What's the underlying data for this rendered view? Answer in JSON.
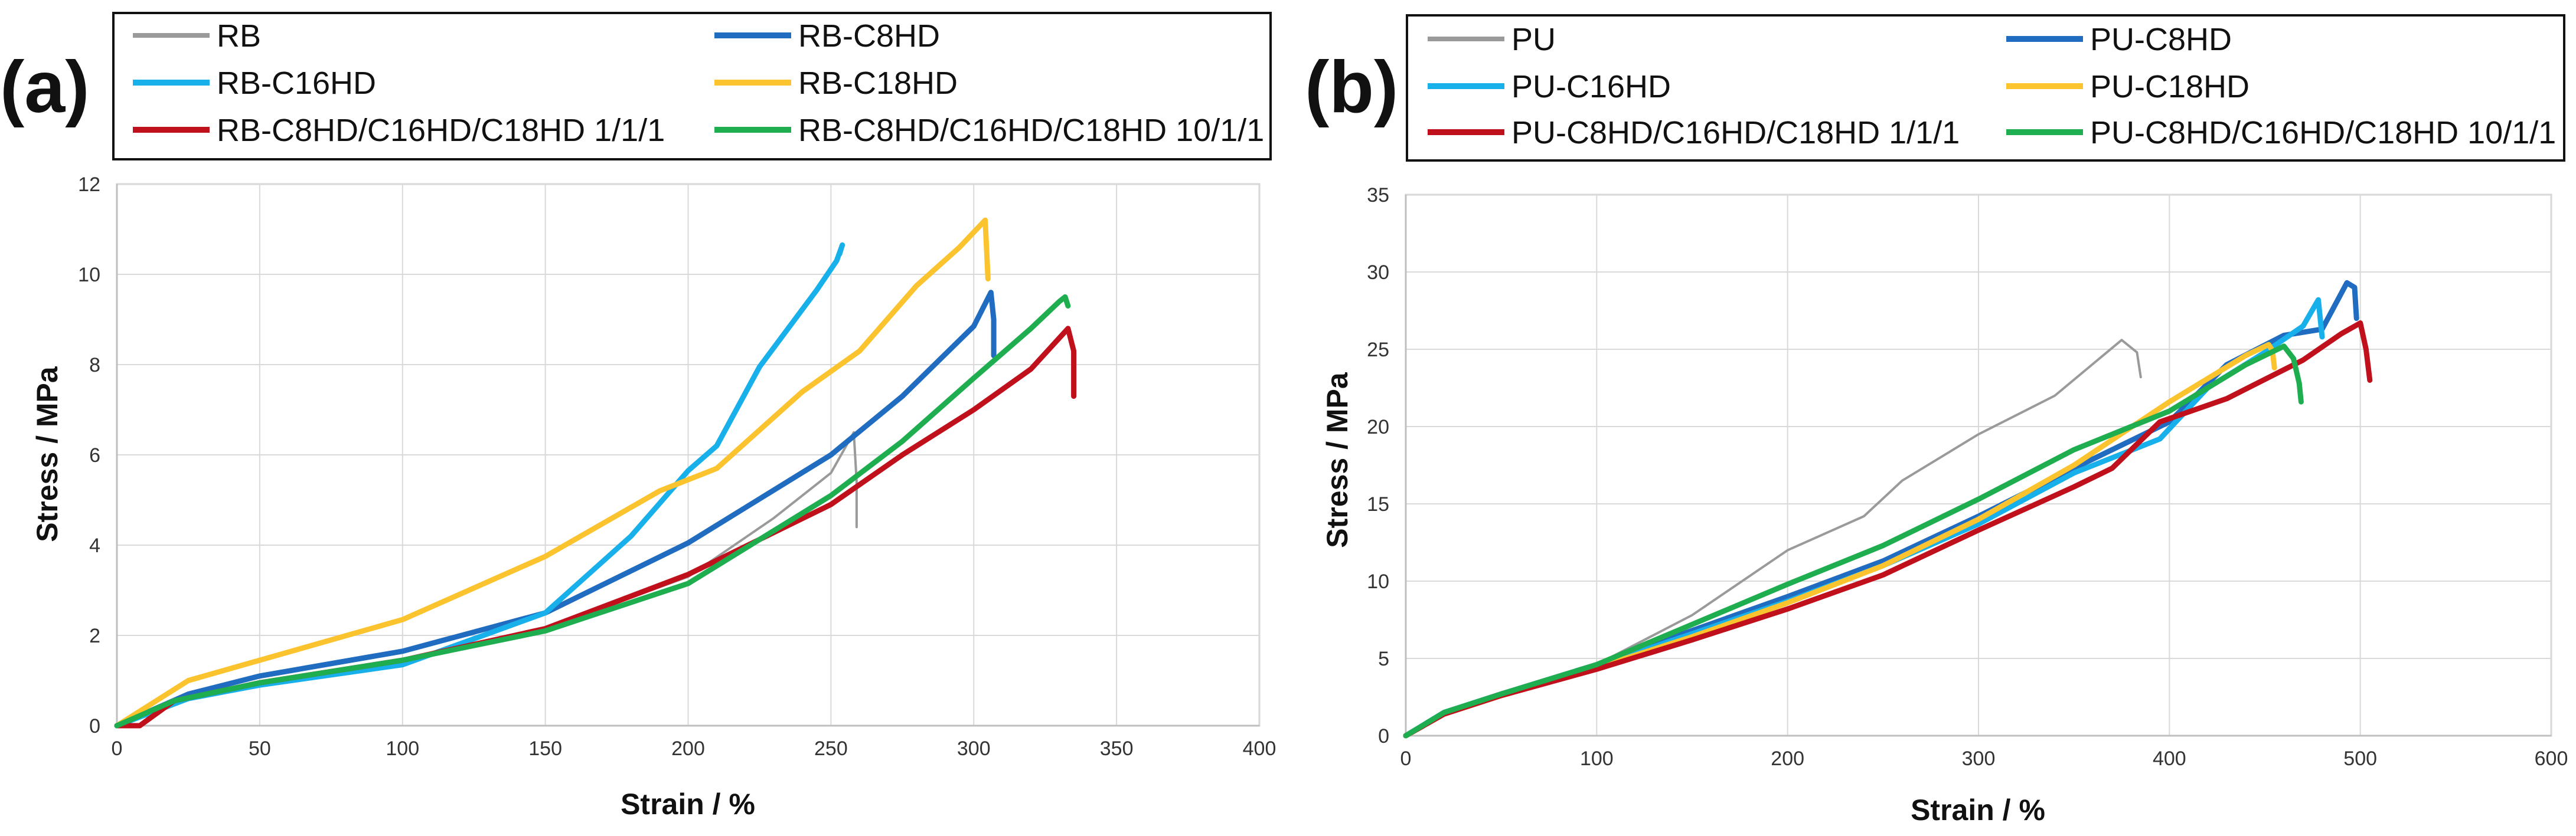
{
  "colors": {
    "gray": "#9a9a9a",
    "dark_blue": "#1f6cc0",
    "light_blue": "#17b0ea",
    "yellow": "#fbc42e",
    "red": "#c0101c",
    "green": "#1fae4f",
    "grid": "#d9d9d9"
  },
  "chart_data": [
    {
      "type": "line",
      "panel_label": "(a)",
      "xlabel": "Strain / %",
      "ylabel": "Stress / MPa",
      "xlim": [
        0,
        400
      ],
      "ylim": [
        0,
        12
      ],
      "xticks": [
        0,
        50,
        100,
        150,
        200,
        250,
        300,
        350,
        400
      ],
      "yticks": [
        0,
        2,
        4,
        6,
        8,
        10,
        12
      ],
      "grid": true,
      "legend_position": "top",
      "series": [
        {
          "name": "RB",
          "color": "gray",
          "line": "thin",
          "x": [
            0,
            25,
            50,
            100,
            150,
            200,
            230,
            250,
            258,
            259,
            259
          ],
          "y": [
            0,
            0.6,
            0.9,
            1.45,
            2.15,
            3.3,
            4.6,
            5.6,
            6.5,
            5.4,
            4.4
          ]
        },
        {
          "name": "RB-C8HD",
          "color": "dark_blue",
          "line": "thick",
          "x": [
            0,
            25,
            50,
            100,
            150,
            200,
            250,
            275,
            300,
            306,
            307,
            307
          ],
          "y": [
            0,
            0.7,
            1.1,
            1.65,
            2.5,
            4.05,
            6.0,
            7.3,
            8.85,
            9.6,
            9.0,
            8.2
          ]
        },
        {
          "name": "RB-C16HD",
          "color": "light_blue",
          "line": "thick",
          "x": [
            0,
            25,
            50,
            100,
            150,
            180,
            200,
            210,
            225,
            245,
            252,
            254,
            253
          ],
          "y": [
            0,
            0.6,
            0.9,
            1.35,
            2.5,
            4.2,
            5.65,
            6.2,
            7.95,
            9.65,
            10.3,
            10.65,
            10.45
          ]
        },
        {
          "name": "RB-C18HD",
          "color": "yellow",
          "line": "thick",
          "x": [
            0,
            25,
            50,
            100,
            150,
            190,
            210,
            240,
            260,
            280,
            295,
            304,
            305
          ],
          "y": [
            0,
            1.0,
            1.45,
            2.35,
            3.75,
            5.2,
            5.7,
            7.4,
            8.3,
            9.75,
            10.6,
            11.2,
            9.9
          ]
        },
        {
          "name": "RB-C8HD/C16HD/C18HD 1/1/1",
          "color": "red",
          "line": "thick",
          "x": [
            0,
            8,
            20,
            50,
            100,
            150,
            200,
            250,
            275,
            300,
            320,
            333,
            335,
            335
          ],
          "y": [
            0,
            0.0,
            0.55,
            0.95,
            1.45,
            2.15,
            3.35,
            4.9,
            6.0,
            7.0,
            7.9,
            8.8,
            8.3,
            7.3
          ]
        },
        {
          "name": "RB-C8HD/C16HD/C18HD 10/1/1",
          "color": "green",
          "line": "thick",
          "x": [
            0,
            20,
            50,
            100,
            150,
            200,
            250,
            275,
            300,
            320,
            330,
            332,
            333
          ],
          "y": [
            0,
            0.55,
            0.95,
            1.45,
            2.1,
            3.15,
            5.1,
            6.3,
            7.7,
            8.8,
            9.4,
            9.5,
            9.3
          ]
        }
      ]
    },
    {
      "type": "line",
      "panel_label": "(b)",
      "xlabel": "Strain / %",
      "ylabel": "Stress / MPa",
      "xlim": [
        0,
        600
      ],
      "ylim": [
        0,
        35
      ],
      "xticks": [
        0,
        100,
        200,
        300,
        400,
        500,
        600
      ],
      "yticks": [
        0,
        5,
        10,
        15,
        20,
        25,
        30,
        35
      ],
      "grid": true,
      "legend_position": "top",
      "series": [
        {
          "name": "PU",
          "color": "gray",
          "line": "thin",
          "x": [
            0,
            20,
            50,
            100,
            150,
            200,
            240,
            260,
            300,
            340,
            375,
            383,
            385
          ],
          "y": [
            0,
            1.6,
            2.8,
            4.6,
            7.8,
            12.0,
            14.2,
            16.5,
            19.5,
            22.0,
            25.6,
            24.8,
            23.2
          ]
        },
        {
          "name": "PU-C8HD",
          "color": "dark_blue",
          "line": "thick",
          "x": [
            0,
            20,
            50,
            100,
            150,
            200,
            250,
            300,
            350,
            400,
            430,
            460,
            480,
            493,
            497,
            498
          ],
          "y": [
            0,
            1.5,
            2.7,
            4.6,
            6.8,
            9.0,
            11.3,
            14.2,
            17.3,
            20.3,
            24.0,
            25.9,
            26.3,
            29.3,
            29.0,
            27.0
          ]
        },
        {
          "name": "PU-C16HD",
          "color": "light_blue",
          "line": "thick",
          "x": [
            0,
            20,
            50,
            100,
            150,
            200,
            250,
            300,
            350,
            395,
            420,
            450,
            470,
            478,
            480
          ],
          "y": [
            0,
            1.5,
            2.7,
            4.5,
            6.6,
            8.7,
            11.0,
            13.7,
            17.0,
            19.2,
            22.5,
            24.8,
            26.5,
            28.2,
            25.8
          ]
        },
        {
          "name": "PU-C18HD",
          "color": "yellow",
          "line": "thick",
          "x": [
            0,
            20,
            50,
            100,
            150,
            200,
            250,
            300,
            350,
            400,
            440,
            452,
            454,
            455
          ],
          "y": [
            0,
            1.4,
            2.6,
            4.4,
            6.4,
            8.6,
            11.0,
            14.0,
            17.5,
            21.6,
            24.6,
            25.3,
            24.9,
            23.8
          ]
        },
        {
          "name": "PU-C8HD/C16HD/C18HD 1/1/1",
          "color": "red",
          "line": "thick",
          "x": [
            0,
            20,
            50,
            100,
            150,
            200,
            250,
            300,
            350,
            370,
            395,
            430,
            470,
            490,
            500,
            503,
            505
          ],
          "y": [
            0,
            1.4,
            2.6,
            4.3,
            6.2,
            8.2,
            10.4,
            13.3,
            16.1,
            17.3,
            20.3,
            21.8,
            24.3,
            26.0,
            26.7,
            25.0,
            23.0
          ]
        },
        {
          "name": "PU-C8HD/C16HD/C18HD 10/1/1",
          "color": "green",
          "line": "thick",
          "x": [
            0,
            20,
            50,
            100,
            150,
            200,
            250,
            300,
            350,
            400,
            440,
            460,
            465,
            468,
            469
          ],
          "y": [
            0,
            1.5,
            2.7,
            4.6,
            7.2,
            9.8,
            12.3,
            15.3,
            18.5,
            21.0,
            24.0,
            25.2,
            24.4,
            22.8,
            21.6
          ]
        }
      ]
    }
  ]
}
